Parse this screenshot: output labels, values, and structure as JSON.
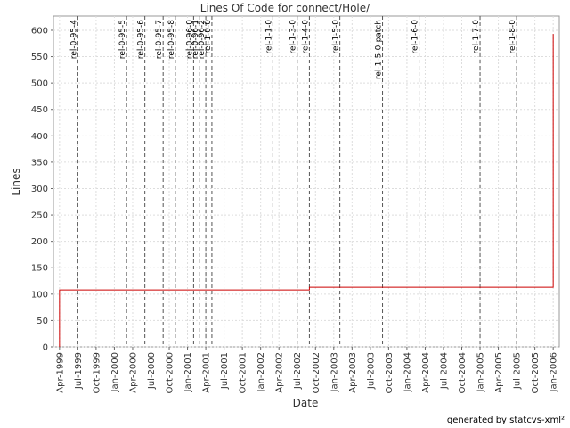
{
  "chart_data": {
    "type": "line",
    "title": "Lines Of Code for connect/Hole/",
    "x_label": "Date",
    "y_label": "Lines",
    "footer": "generated by statcvs-xml²",
    "x": [
      "1999-04",
      "1999-04",
      "2002-09",
      "2002-09",
      "2006-01",
      "2006-01"
    ],
    "series": [
      {
        "name": "Lines",
        "color": "#cc0000",
        "values": [
          0,
          108,
          108,
          113,
          113,
          593
        ]
      }
    ],
    "markers": [
      {
        "label": "rel-0-95-4",
        "x": "1999-07"
      },
      {
        "label": "rel-0-95-5",
        "x": "2000-03"
      },
      {
        "label": "rel-0-95-6",
        "x": "2000-06"
      },
      {
        "label": "rel-0-95-7",
        "x": "2000-09"
      },
      {
        "label": "rel-0-95-8",
        "x": "2000-11"
      },
      {
        "label": "rel-0-96-0",
        "x": "2001-02"
      },
      {
        "label": "rel-0-96-1",
        "x": "2001-03"
      },
      {
        "label": "rel-0-96-2",
        "x": "2001-04"
      },
      {
        "label": "rel-1-0-0",
        "x": "2001-05"
      },
      {
        "label": "rel-1-1-0",
        "x": "2002-03"
      },
      {
        "label": "rel-1-3-0",
        "x": "2002-07"
      },
      {
        "label": "rel-1-4-0",
        "x": "2002-09"
      },
      {
        "label": "rel-1-5-0",
        "x": "2003-02"
      },
      {
        "label": "rel-1-5-0-patch",
        "x": "2003-09"
      },
      {
        "label": "rel-1-6-0",
        "x": "2004-03"
      },
      {
        "label": "rel-1-7-0",
        "x": "2005-01"
      },
      {
        "label": "rel-1-8-0",
        "x": "2005-07"
      }
    ],
    "xlim": [
      "1999-03",
      "2006-02"
    ],
    "xticks": [
      {
        "value": "1999-04",
        "label": "Apr-1999"
      },
      {
        "value": "1999-07",
        "label": "Jul-1999"
      },
      {
        "value": "1999-10",
        "label": "Oct-1999"
      },
      {
        "value": "2000-01",
        "label": "Jan-2000"
      },
      {
        "value": "2000-04",
        "label": "Apr-2000"
      },
      {
        "value": "2000-07",
        "label": "Jul-2000"
      },
      {
        "value": "2000-10",
        "label": "Oct-2000"
      },
      {
        "value": "2001-01",
        "label": "Jan-2001"
      },
      {
        "value": "2001-04",
        "label": "Apr-2001"
      },
      {
        "value": "2001-07",
        "label": "Jul-2001"
      },
      {
        "value": "2001-10",
        "label": "Oct-2001"
      },
      {
        "value": "2002-01",
        "label": "Jan-2002"
      },
      {
        "value": "2002-04",
        "label": "Apr-2002"
      },
      {
        "value": "2002-07",
        "label": "Jul-2002"
      },
      {
        "value": "2002-10",
        "label": "Oct-2002"
      },
      {
        "value": "2003-01",
        "label": "Jan-2003"
      },
      {
        "value": "2003-04",
        "label": "Apr-2003"
      },
      {
        "value": "2003-07",
        "label": "Jul-2003"
      },
      {
        "value": "2003-10",
        "label": "Oct-2003"
      },
      {
        "value": "2004-01",
        "label": "Jan-2004"
      },
      {
        "value": "2004-04",
        "label": "Apr-2004"
      },
      {
        "value": "2004-07",
        "label": "Jul-2004"
      },
      {
        "value": "2004-10",
        "label": "Oct-2004"
      },
      {
        "value": "2005-01",
        "label": "Jan-2005"
      },
      {
        "value": "2005-04",
        "label": "Apr-2005"
      },
      {
        "value": "2005-07",
        "label": "Jul-2005"
      },
      {
        "value": "2005-10",
        "label": "Oct-2005"
      },
      {
        "value": "2006-01",
        "label": "Jan-2006"
      }
    ],
    "ylim": [
      0,
      627
    ],
    "yticks": [
      0,
      50,
      100,
      150,
      200,
      250,
      300,
      350,
      400,
      450,
      500,
      550,
      600
    ],
    "grid": true
  }
}
